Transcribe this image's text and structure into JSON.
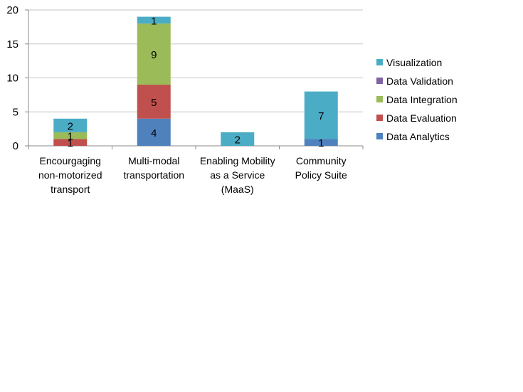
{
  "chart_data": {
    "type": "bar",
    "stacked": true,
    "categories": [
      [
        "Encourgaging",
        "non-motorized",
        "transport"
      ],
      [
        "Multi-modal",
        "transportation"
      ],
      [
        "Enabling Mobility",
        "as a Service",
        "(MaaS)"
      ],
      [
        "Community",
        "Policy Suite"
      ]
    ],
    "series": [
      {
        "name": "Data Analytics",
        "color": "#4f81bd",
        "values": [
          0,
          4,
          0,
          1
        ]
      },
      {
        "name": "Data Evaluation",
        "color": "#c0504d",
        "values": [
          1,
          5,
          0,
          0
        ]
      },
      {
        "name": "Data Integration",
        "color": "#9bbb59",
        "values": [
          1,
          9,
          0,
          0
        ]
      },
      {
        "name": "Data Validation",
        "color": "#8064a2",
        "values": [
          0,
          0,
          0,
          0
        ]
      },
      {
        "name": "Visualization",
        "color": "#4bacc6",
        "values": [
          2,
          1,
          2,
          7
        ]
      }
    ],
    "ylim": [
      0,
      20
    ],
    "yticks": [
      0,
      5,
      10,
      15,
      20
    ],
    "grid": true,
    "legend_position": "right",
    "legend_order": [
      "Visualization",
      "Data Validation",
      "Data Integration",
      "Data Evaluation",
      "Data Analytics"
    ],
    "title": "",
    "xlabel": "",
    "ylabel": ""
  }
}
